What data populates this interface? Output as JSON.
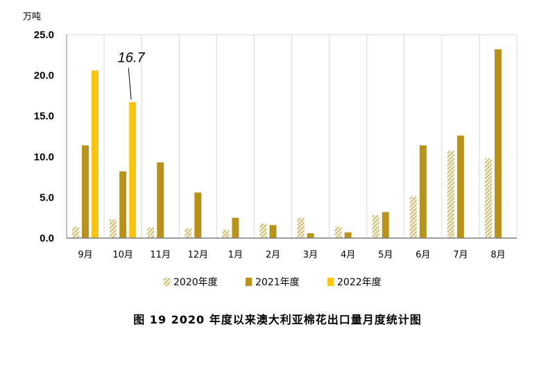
{
  "caption": "图 19   2020 年度以来澳大利亚棉花出口量月度统计图",
  "chart_data": {
    "type": "bar",
    "ylabel": "万吨",
    "ylim": [
      0,
      25
    ],
    "yticks": [
      "0.0",
      "5.0",
      "10.0",
      "15.0",
      "20.0",
      "25.0"
    ],
    "grid": "vertical",
    "legend_position": "bottom",
    "categories": [
      "9月",
      "10月",
      "11月",
      "12月",
      "1月",
      "2月",
      "3月",
      "4月",
      "5月",
      "6月",
      "7月",
      "8月"
    ],
    "series": [
      {
        "name": "2020年度",
        "color": "#c9b24a",
        "pattern": "hatch",
        "values": [
          1.4,
          2.3,
          1.3,
          1.2,
          1.0,
          1.8,
          2.5,
          1.4,
          2.8,
          5.1,
          10.7,
          9.8
        ]
      },
      {
        "name": "2021年度",
        "color": "#b8921a",
        "pattern": "solid",
        "values": [
          11.4,
          8.2,
          9.3,
          5.6,
          2.5,
          1.6,
          0.6,
          0.7,
          3.2,
          11.4,
          12.6,
          23.2
        ]
      },
      {
        "name": "2022年度",
        "color": "#fbc312",
        "pattern": "solid",
        "values": [
          20.6,
          16.7,
          null,
          null,
          null,
          null,
          null,
          null,
          null,
          null,
          null,
          null
        ]
      }
    ],
    "annotations": [
      {
        "text": "16.7",
        "series": "2022年度",
        "category": "10月"
      }
    ]
  }
}
